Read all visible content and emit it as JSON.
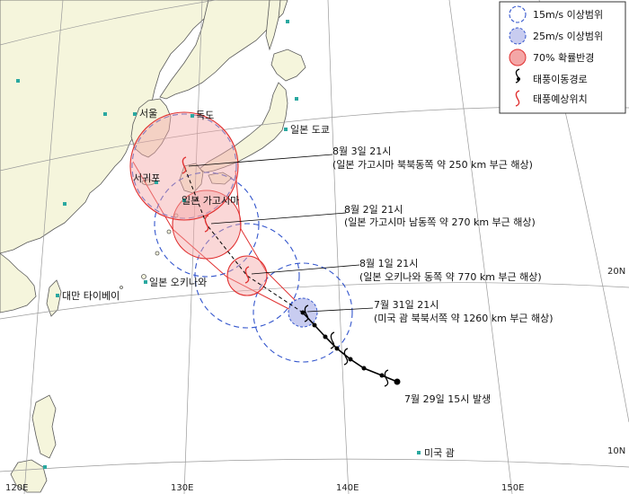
{
  "map": {
    "grid": {
      "lon_labels": [
        "120E",
        "130E",
        "140E",
        "150E"
      ],
      "lat_labels": [
        "20N",
        "10N"
      ]
    },
    "places": [
      {
        "name": "서울"
      },
      {
        "name": "독도"
      },
      {
        "name": "일본 도쿄"
      },
      {
        "name": "서귀포"
      },
      {
        "name": "일본 가고시마"
      },
      {
        "name": "일본 오키나와"
      },
      {
        "name": "대만 타이베이"
      },
      {
        "name": "미국 괌"
      }
    ],
    "forecasts": [
      {
        "time": "8월 3일 21시",
        "detail": "(일본 가고시마 북북동쪽 약 250 km 부근 해상)"
      },
      {
        "time": "8월 2일 21시",
        "detail": "(일본 가고시마 남동쪽 약 270 km 부근 해상)"
      },
      {
        "time": "8월 1일 21시",
        "detail": "(일본 오키나와 동쪽 약 770 km 부근 해상)"
      },
      {
        "time": "7월 31일 21시",
        "detail": "(미국 괌 북북서쪽 약 1260 km 부근 해상)"
      }
    ],
    "genesis_label": "7월 29일 15시 발생"
  },
  "legend": {
    "items": [
      {
        "label": "15m/s 이상범위",
        "icon": "dashed-circle-icon"
      },
      {
        "label": "25m/s 이상범위",
        "icon": "blue-circle-icon"
      },
      {
        "label": "70% 확률반경",
        "icon": "red-circle-icon"
      },
      {
        "label": "태풍이동경로",
        "icon": "typhoon-black-icon"
      },
      {
        "label": "태풍예상위치",
        "icon": "typhoon-red-icon"
      }
    ]
  },
  "colors": {
    "land": "#f5f5dc",
    "sea": "#ffffff",
    "coast": "#5a5a5a",
    "grid": "#9a9a9a",
    "wind15": "#3355cc",
    "wind25_fill": "#c8ccf0",
    "prob70_fill": "#f4a6a6",
    "prob70_stroke": "#e03030",
    "track": "#000000",
    "forecast_track": "#e03030",
    "city_marker": "#2aa8a0"
  }
}
